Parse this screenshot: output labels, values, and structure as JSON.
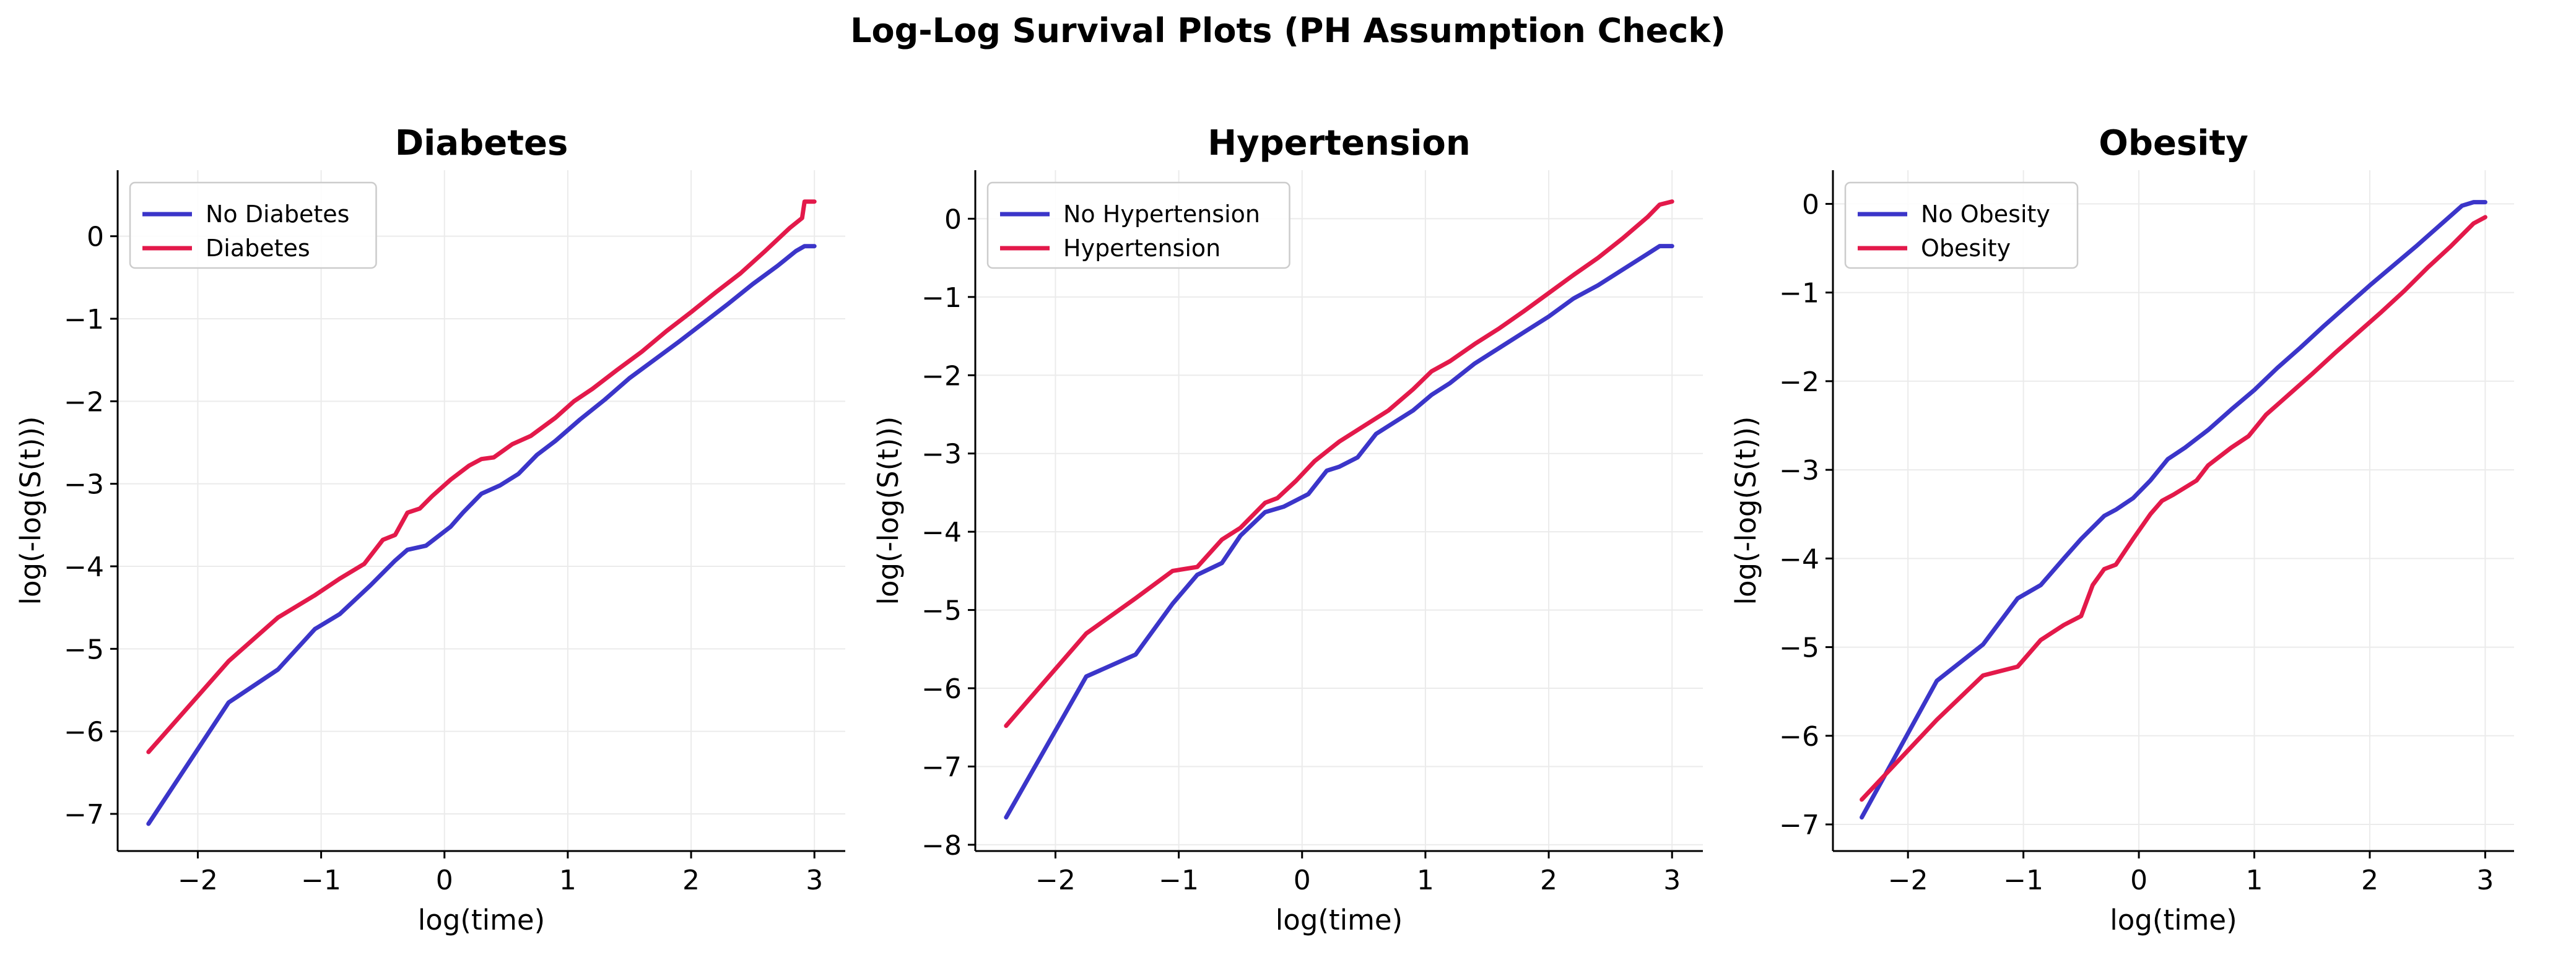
{
  "figure_title": "Log-Log Survival Plots (PH Assumption Check)",
  "chart_data": [
    {
      "type": "line",
      "title": "Diabetes",
      "xlabel": "log(time)",
      "ylabel": "log(-log(S(t)))",
      "xlim": [
        -2.65,
        3.25
      ],
      "ylim": [
        -7.45,
        0.8
      ],
      "xticks": [
        -2,
        -1,
        0,
        1,
        2,
        3
      ],
      "yticks": [
        -7,
        -6,
        -5,
        -4,
        -3,
        -2,
        -1,
        0
      ],
      "grid": true,
      "legend": "top-left",
      "series": [
        {
          "name": "No Diabetes",
          "color": "#3b35c9",
          "x": [
            -2.4,
            -1.75,
            -1.35,
            -1.05,
            -0.85,
            -0.6,
            -0.4,
            -0.3,
            -0.15,
            0.05,
            0.15,
            0.3,
            0.45,
            0.6,
            0.75,
            0.9,
            1.1,
            1.3,
            1.5,
            1.7,
            1.9,
            2.1,
            2.3,
            2.5,
            2.7,
            2.85,
            2.92,
            3.0
          ],
          "y": [
            -7.12,
            -5.65,
            -5.25,
            -4.76,
            -4.58,
            -4.23,
            -3.93,
            -3.8,
            -3.75,
            -3.52,
            -3.35,
            -3.12,
            -3.02,
            -2.88,
            -2.65,
            -2.48,
            -2.22,
            -1.98,
            -1.72,
            -1.5,
            -1.28,
            -1.05,
            -0.82,
            -0.58,
            -0.36,
            -0.18,
            -0.12,
            -0.12
          ]
        },
        {
          "name": "Diabetes",
          "color": "#e3194a",
          "x": [
            -2.4,
            -1.75,
            -1.35,
            -1.05,
            -0.85,
            -0.65,
            -0.5,
            -0.4,
            -0.3,
            -0.2,
            -0.1,
            0.05,
            0.2,
            0.3,
            0.4,
            0.55,
            0.7,
            0.9,
            1.05,
            1.2,
            1.4,
            1.6,
            1.8,
            2.0,
            2.2,
            2.4,
            2.6,
            2.8,
            2.9,
            2.92,
            3.0
          ],
          "y": [
            -6.25,
            -5.15,
            -4.62,
            -4.35,
            -4.15,
            -3.97,
            -3.68,
            -3.62,
            -3.35,
            -3.3,
            -3.15,
            -2.95,
            -2.78,
            -2.7,
            -2.68,
            -2.52,
            -2.42,
            -2.2,
            -2.0,
            -1.85,
            -1.62,
            -1.4,
            -1.15,
            -0.92,
            -0.68,
            -0.45,
            -0.18,
            0.1,
            0.22,
            0.42,
            0.42
          ]
        }
      ]
    },
    {
      "type": "line",
      "title": "Hypertension",
      "xlabel": "log(time)",
      "ylabel": "log(-log(S(t)))",
      "xlim": [
        -2.65,
        3.25
      ],
      "ylim": [
        -8.08,
        0.62
      ],
      "xticks": [
        -2,
        -1,
        0,
        1,
        2,
        3
      ],
      "yticks": [
        -8,
        -7,
        -6,
        -5,
        -4,
        -3,
        -2,
        -1,
        0
      ],
      "grid": true,
      "legend": "top-left",
      "series": [
        {
          "name": "No Hypertension",
          "color": "#3b35c9",
          "x": [
            -2.4,
            -1.75,
            -1.35,
            -1.05,
            -0.85,
            -0.65,
            -0.5,
            -0.3,
            -0.15,
            0.05,
            0.2,
            0.3,
            0.45,
            0.6,
            0.75,
            0.9,
            1.05,
            1.2,
            1.4,
            1.6,
            1.8,
            2.0,
            2.2,
            2.4,
            2.6,
            2.8,
            2.9,
            3.0
          ],
          "y": [
            -7.65,
            -5.85,
            -5.57,
            -4.92,
            -4.55,
            -4.4,
            -4.05,
            -3.75,
            -3.68,
            -3.52,
            -3.22,
            -3.17,
            -3.05,
            -2.75,
            -2.6,
            -2.45,
            -2.25,
            -2.1,
            -1.85,
            -1.65,
            -1.45,
            -1.25,
            -1.02,
            -0.85,
            -0.65,
            -0.45,
            -0.35,
            -0.35
          ]
        },
        {
          "name": "Hypertension",
          "color": "#e3194a",
          "x": [
            -2.4,
            -1.75,
            -1.35,
            -1.05,
            -0.85,
            -0.65,
            -0.5,
            -0.3,
            -0.2,
            -0.05,
            0.1,
            0.3,
            0.5,
            0.7,
            0.9,
            1.05,
            1.2,
            1.4,
            1.6,
            1.8,
            2.0,
            2.2,
            2.4,
            2.6,
            2.8,
            2.9,
            3.0
          ],
          "y": [
            -6.48,
            -5.3,
            -4.85,
            -4.5,
            -4.45,
            -4.1,
            -3.95,
            -3.63,
            -3.57,
            -3.35,
            -3.1,
            -2.85,
            -2.65,
            -2.45,
            -2.18,
            -1.95,
            -1.82,
            -1.6,
            -1.4,
            -1.18,
            -0.95,
            -0.72,
            -0.5,
            -0.25,
            0.02,
            0.18,
            0.22
          ]
        }
      ]
    },
    {
      "type": "line",
      "title": "Obesity",
      "xlabel": "log(time)",
      "ylabel": "log(-log(S(t)))",
      "xlim": [
        -2.65,
        3.25
      ],
      "ylim": [
        -7.3,
        0.38
      ],
      "xticks": [
        -2,
        -1,
        0,
        1,
        2,
        3
      ],
      "yticks": [
        -7,
        -6,
        -5,
        -4,
        -3,
        -2,
        -1,
        0
      ],
      "grid": true,
      "legend": "top-left",
      "series": [
        {
          "name": "No Obesity",
          "color": "#3b35c9",
          "x": [
            -2.4,
            -1.75,
            -1.35,
            -1.05,
            -0.85,
            -0.65,
            -0.5,
            -0.3,
            -0.2,
            -0.05,
            0.1,
            0.25,
            0.4,
            0.6,
            0.8,
            1.0,
            1.2,
            1.4,
            1.6,
            1.8,
            2.0,
            2.2,
            2.4,
            2.6,
            2.8,
            2.9,
            3.0
          ],
          "y": [
            -6.92,
            -5.38,
            -4.97,
            -4.45,
            -4.3,
            -4.0,
            -3.78,
            -3.52,
            -3.45,
            -3.32,
            -3.12,
            -2.88,
            -2.75,
            -2.55,
            -2.32,
            -2.1,
            -1.85,
            -1.62,
            -1.38,
            -1.15,
            -0.92,
            -0.7,
            -0.48,
            -0.25,
            -0.02,
            0.02,
            0.02
          ]
        },
        {
          "name": "Obesity",
          "color": "#e3194a",
          "x": [
            -2.4,
            -1.75,
            -1.35,
            -1.05,
            -0.85,
            -0.65,
            -0.5,
            -0.4,
            -0.3,
            -0.2,
            -0.05,
            0.1,
            0.2,
            0.3,
            0.5,
            0.6,
            0.8,
            0.95,
            1.1,
            1.3,
            1.5,
            1.7,
            1.9,
            2.1,
            2.3,
            2.5,
            2.7,
            2.9,
            3.0
          ],
          "y": [
            -6.72,
            -5.82,
            -5.32,
            -5.22,
            -4.92,
            -4.75,
            -4.65,
            -4.3,
            -4.12,
            -4.07,
            -3.78,
            -3.5,
            -3.35,
            -3.28,
            -3.12,
            -2.95,
            -2.75,
            -2.62,
            -2.38,
            -2.15,
            -1.92,
            -1.68,
            -1.45,
            -1.22,
            -0.98,
            -0.72,
            -0.48,
            -0.22,
            -0.15
          ]
        }
      ]
    }
  ]
}
